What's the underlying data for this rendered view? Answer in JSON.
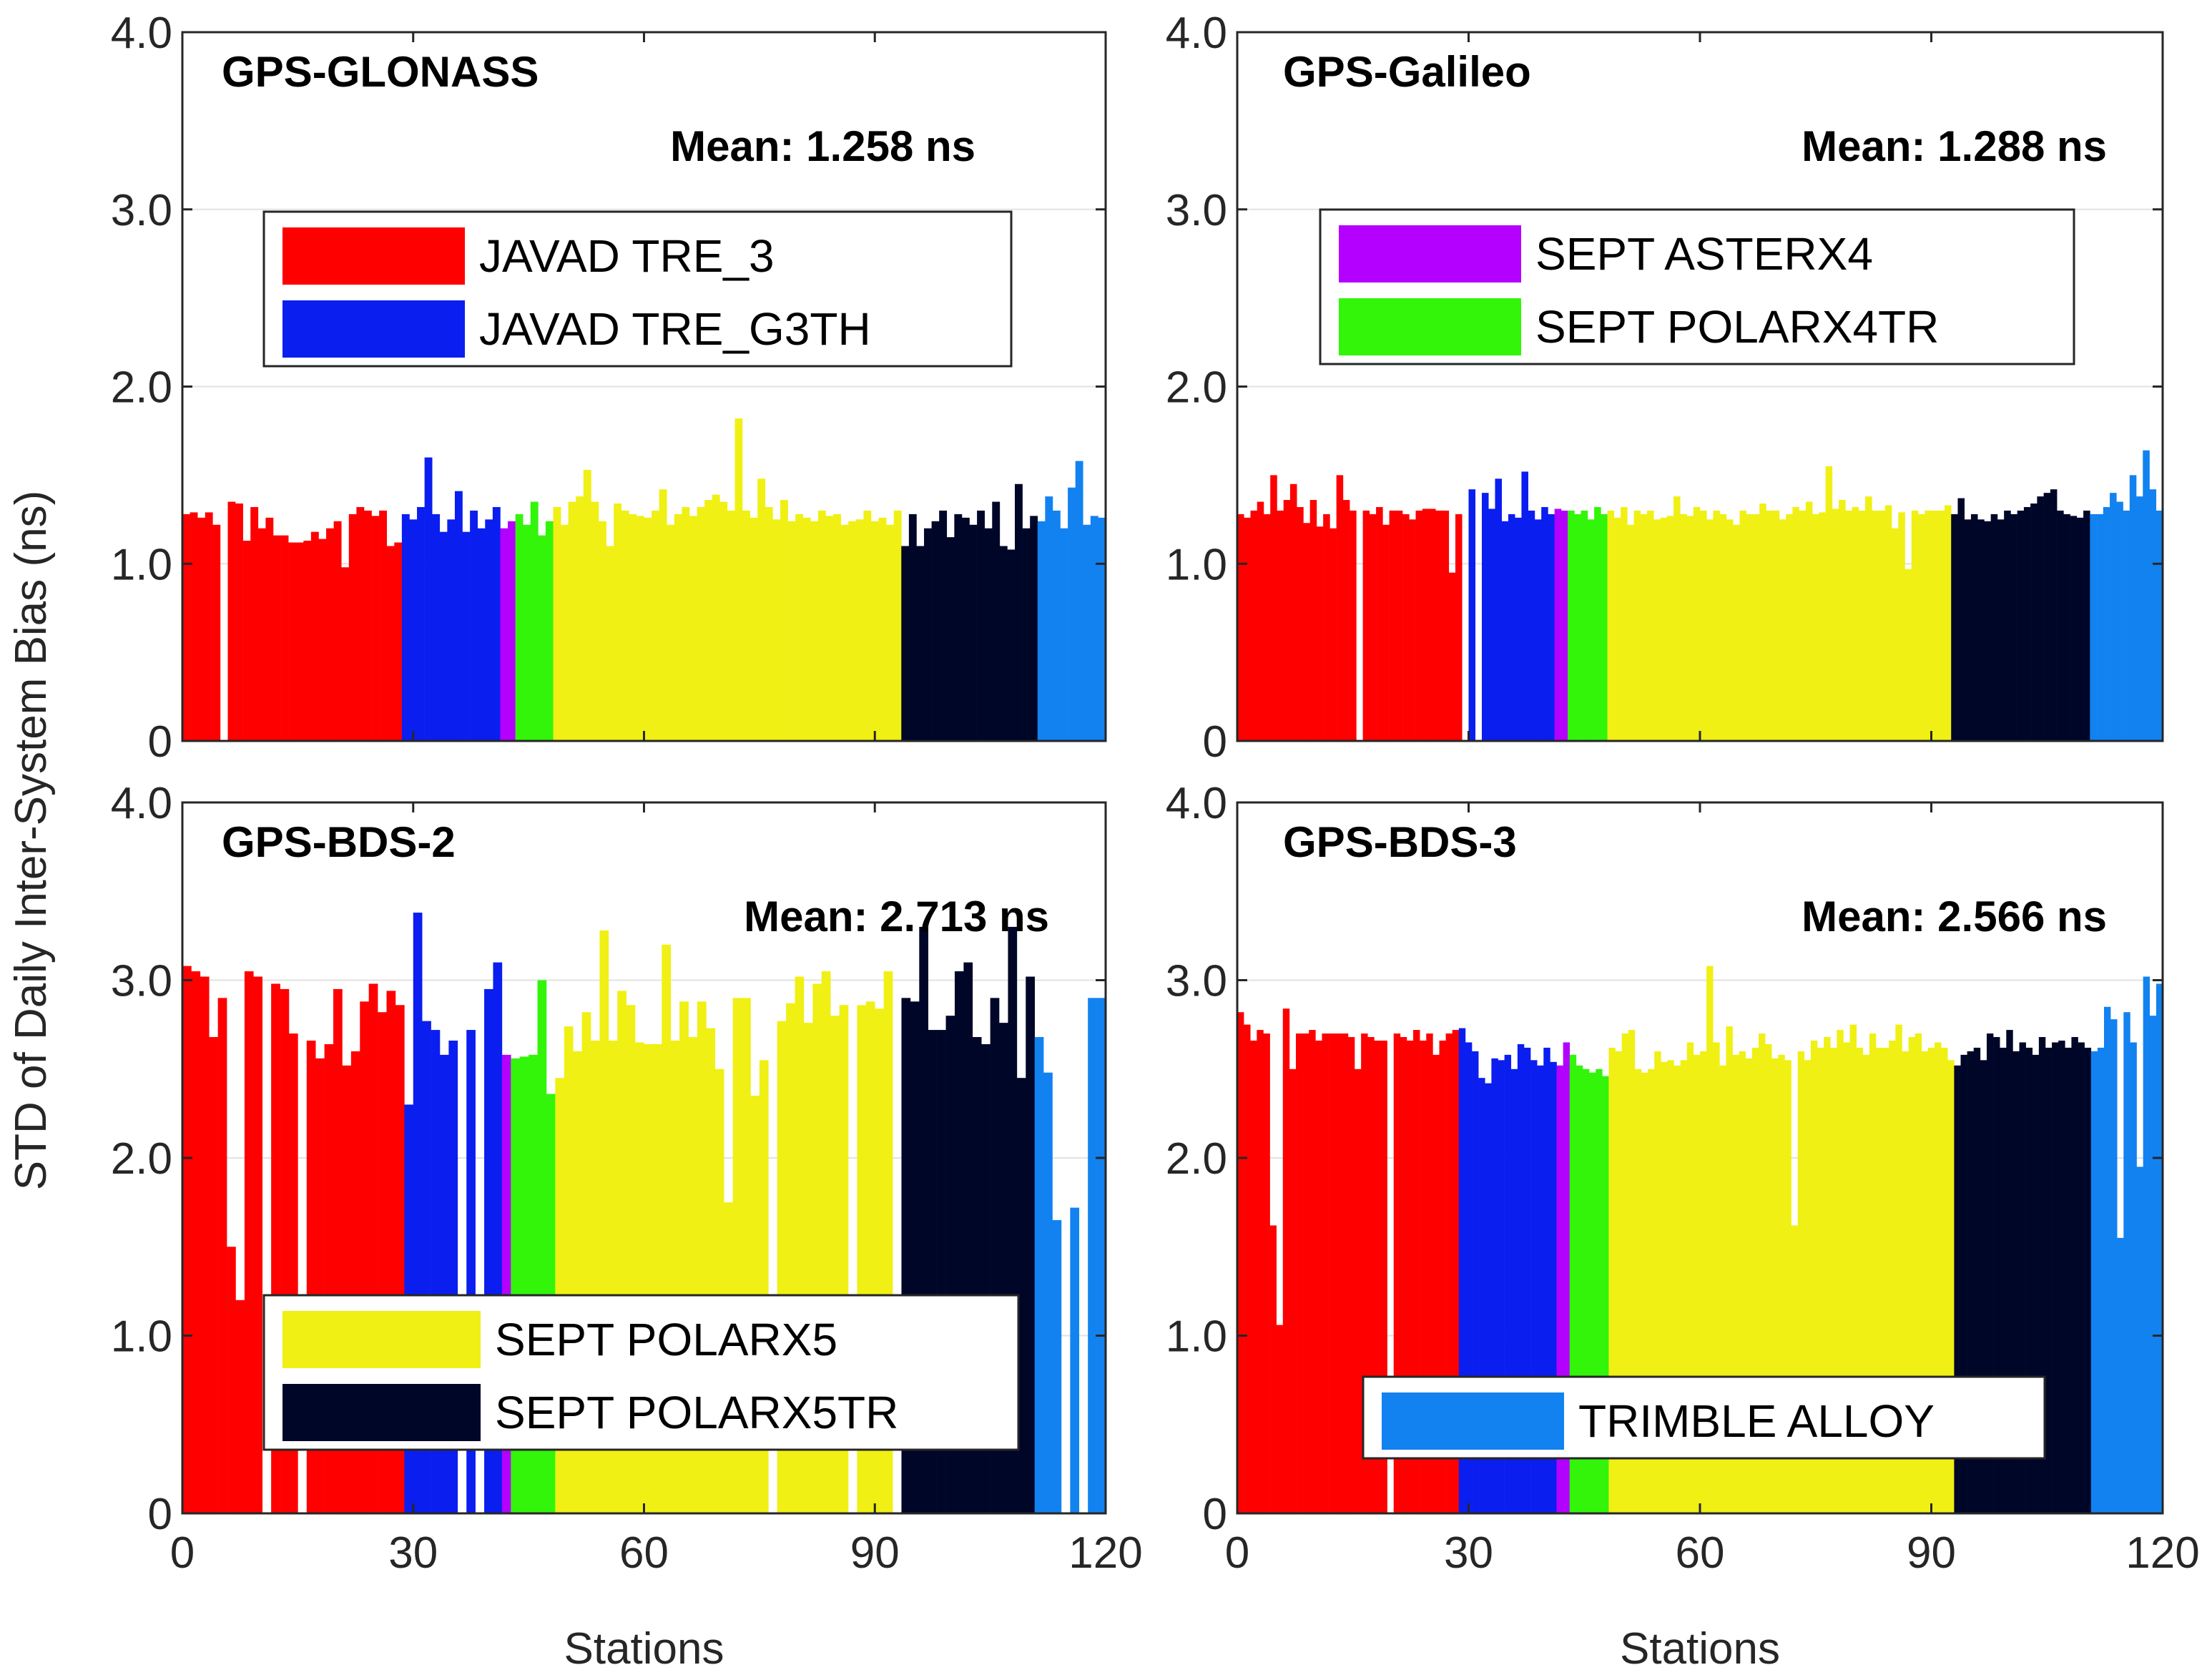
{
  "figure": {
    "ylabel": "STD of Daily Inter-System Bias (ns)",
    "xlabel": "Stations"
  },
  "chart_data": [
    {
      "type": "bar",
      "title": "GPS-GLONASS",
      "annotation": "Mean: 1.258 ns",
      "xlabel": "Stations",
      "ylabel": "STD of Daily Inter-System Bias (ns)",
      "xlim": [
        0,
        120
      ],
      "ylim": [
        0,
        4
      ],
      "xticks": [
        "0",
        "30",
        "60",
        "90",
        "120"
      ],
      "yticks": [
        "0",
        "1.0",
        "2.0",
        "3.0",
        "4.0"
      ],
      "grid": true,
      "legend": {
        "placement": "top-left",
        "entries": [
          "JAVAD TRE_3",
          "JAVAD TRE_G3TH"
        ]
      },
      "values": [
        1.28,
        1.29,
        1.26,
        1.29,
        1.22,
        0,
        1.35,
        1.34,
        1.13,
        1.32,
        1.2,
        1.26,
        1.16,
        1.16,
        1.12,
        1.12,
        1.13,
        1.18,
        1.14,
        1.2,
        1.24,
        0.98,
        1.28,
        1.32,
        1.3,
        1.27,
        1.3,
        1.1,
        1.12,
        1.28,
        1.25,
        1.32,
        1.6,
        1.28,
        1.18,
        1.25,
        1.41,
        1.18,
        1.3,
        1.2,
        1.25,
        1.32,
        1.2,
        1.24,
        1.28,
        1.22,
        1.35,
        1.16,
        1.24,
        1.32,
        1.22,
        1.35,
        1.38,
        1.53,
        1.35,
        1.24,
        1.1,
        1.34,
        1.3,
        1.28,
        1.27,
        1.26,
        1.3,
        1.42,
        1.22,
        1.28,
        1.32,
        1.27,
        1.32,
        1.36,
        1.39,
        1.35,
        1.3,
        1.82,
        1.3,
        1.26,
        1.48,
        1.32,
        1.25,
        1.36,
        1.24,
        1.28,
        1.26,
        1.24,
        1.3,
        1.27,
        1.28,
        1.22,
        1.24,
        1.25,
        1.3,
        1.24,
        1.26,
        1.22,
        1.3,
        1.1,
        1.28,
        1.1,
        1.2,
        1.24,
        1.3,
        1.15,
        1.28,
        1.26,
        1.22,
        1.3,
        1.2,
        1.35,
        1.1,
        1.08,
        1.45,
        1.2,
        1.27,
        1.24,
        1.38,
        1.3,
        1.2,
        1.43,
        1.58,
        1.22,
        1.27,
        1.26
      ]
    },
    {
      "type": "bar",
      "title": "GPS-Galileo",
      "annotation": "Mean: 1.288 ns",
      "xlabel": "Stations",
      "ylabel": "STD of Daily Inter-System Bias (ns)",
      "xlim": [
        0,
        120
      ],
      "ylim": [
        0,
        4
      ],
      "xticks": [
        "0",
        "30",
        "60",
        "90",
        "120"
      ],
      "yticks": [
        "0",
        "1.0",
        "2.0",
        "3.0",
        "4.0"
      ],
      "grid": true,
      "legend": {
        "placement": "top-left",
        "entries": [
          "SEPT ASTERX4",
          "SEPT POLARX4TR"
        ]
      },
      "values": [
        1.28,
        1.26,
        1.3,
        1.35,
        1.28,
        1.5,
        1.3,
        1.36,
        1.45,
        1.32,
        1.23,
        1.36,
        1.21,
        1.28,
        1.2,
        1.5,
        1.36,
        1.3,
        0,
        1.3,
        1.28,
        1.32,
        1.22,
        1.3,
        1.3,
        1.28,
        1.25,
        1.3,
        1.31,
        1.31,
        1.3,
        1.3,
        0.95,
        1.28,
        0,
        1.42,
        0,
        1.4,
        1.31,
        1.48,
        1.24,
        1.28,
        1.26,
        1.52,
        1.3,
        1.25,
        1.32,
        1.28,
        1.31,
        1.3,
        1.3,
        1.28,
        1.3,
        1.25,
        1.32,
        1.28,
        1.3,
        1.26,
        1.32,
        1.22,
        1.3,
        1.28,
        1.3,
        1.25,
        1.26,
        1.27,
        1.38,
        1.28,
        1.27,
        1.32,
        1.3,
        1.25,
        1.3,
        1.28,
        1.25,
        1.22,
        1.3,
        1.28,
        1.28,
        1.34,
        1.3,
        1.3,
        1.25,
        1.28,
        1.32,
        1.3,
        1.35,
        1.28,
        1.29,
        1.55,
        1.31,
        1.36,
        1.3,
        1.32,
        1.3,
        1.38,
        1.3,
        1.3,
        1.33,
        1.2,
        1.29,
        0.97,
        1.3,
        1.28,
        1.3,
        1.3,
        1.3,
        1.33,
        1.28,
        1.37,
        1.25,
        1.28,
        1.25,
        1.24,
        1.28,
        1.25,
        1.3,
        1.28,
        1.3,
        1.32,
        1.34,
        1.38,
        1.4,
        1.42,
        1.3,
        1.28,
        1.27,
        1.26,
        1.3,
        1.28,
        1.28,
        1.32,
        1.4,
        1.35,
        1.3,
        1.5,
        1.38,
        1.64,
        1.42,
        1.3
      ]
    },
    {
      "type": "bar",
      "title": "GPS-BDS-2",
      "annotation": "Mean: 2.713 ns",
      "xlabel": "Stations",
      "ylabel": "STD of Daily Inter-System Bias (ns)",
      "xlim": [
        0,
        120
      ],
      "ylim": [
        0,
        4
      ],
      "xticks": [
        "0",
        "30",
        "60",
        "90",
        "120"
      ],
      "yticks": [
        "0",
        "1.0",
        "2.0",
        "3.0",
        "4.0"
      ],
      "grid": true,
      "legend": {
        "placement": "bottom-left",
        "entries": [
          "SEPT POLARX5",
          "SEPT POLARX5TR"
        ]
      },
      "values": [
        3.08,
        3.05,
        3.02,
        2.68,
        2.9,
        1.5,
        1.2,
        3.05,
        3.02,
        0,
        2.98,
        2.95,
        2.7,
        0,
        2.66,
        2.56,
        2.64,
        2.95,
        2.52,
        2.6,
        2.88,
        2.98,
        2.82,
        2.94,
        2.86,
        2.3,
        3.38,
        2.77,
        2.72,
        2.58,
        2.66,
        0,
        2.72,
        0,
        2.95,
        3.1,
        2.58,
        2.56,
        2.57,
        2.58,
        3.0,
        2.36,
        2.45,
        2.74,
        2.6,
        2.82,
        2.66,
        3.28,
        2.66,
        2.94,
        2.86,
        2.65,
        2.64,
        2.64,
        3.2,
        2.66,
        2.88,
        2.68,
        2.88,
        2.73,
        2.5,
        1.75,
        2.9,
        2.9,
        2.35,
        2.55,
        0,
        2.77,
        2.87,
        3.02,
        2.76,
        2.98,
        3.05,
        2.8,
        2.86,
        0,
        2.86,
        2.88,
        2.84,
        3.05,
        0,
        2.9,
        2.88,
        3.3,
        2.72,
        2.72,
        2.8,
        3.05,
        3.1,
        2.68,
        2.64,
        2.9,
        2.76,
        3.3,
        2.45,
        3.02,
        2.68,
        2.48,
        1.65,
        0,
        1.72,
        0,
        2.9,
        2.9
      ]
    },
    {
      "type": "bar",
      "title": "GPS-BDS-3",
      "annotation": "Mean: 2.566 ns",
      "xlabel": "Stations",
      "ylabel": "STD of Daily Inter-System Bias (ns)",
      "xlim": [
        0,
        120
      ],
      "ylim": [
        0,
        4
      ],
      "xticks": [
        "0",
        "30",
        "60",
        "90",
        "120"
      ],
      "yticks": [
        "0",
        "1.0",
        "2.0",
        "3.0",
        "4.0"
      ],
      "grid": true,
      "legend": {
        "placement": "bottom-right",
        "entries": [
          "TRIMBLE ALLOY"
        ]
      },
      "values": [
        2.82,
        2.75,
        2.66,
        2.72,
        2.7,
        1.62,
        1.06,
        2.84,
        2.5,
        2.7,
        2.7,
        2.72,
        2.66,
        2.7,
        2.7,
        2.7,
        2.7,
        2.68,
        2.5,
        2.7,
        2.68,
        2.66,
        2.66,
        0,
        2.7,
        2.68,
        2.66,
        2.72,
        2.66,
        2.7,
        2.58,
        2.66,
        2.7,
        2.72,
        2.73,
        2.65,
        2.6,
        2.45,
        2.42,
        2.56,
        2.55,
        2.58,
        2.5,
        2.64,
        2.62,
        2.55,
        2.52,
        2.62,
        2.54,
        2.52,
        2.65,
        2.58,
        2.52,
        2.5,
        2.48,
        2.5,
        2.46,
        2.62,
        2.6,
        2.7,
        2.72,
        2.5,
        2.48,
        2.5,
        2.6,
        2.54,
        2.55,
        2.52,
        2.55,
        2.65,
        2.58,
        2.6,
        3.08,
        2.65,
        2.52,
        2.74,
        2.58,
        2.6,
        2.56,
        2.62,
        2.7,
        2.64,
        2.56,
        2.58,
        2.55,
        1.62,
        2.6,
        2.55,
        2.66,
        2.62,
        2.68,
        2.62,
        2.72,
        2.65,
        2.75,
        2.62,
        2.58,
        2.7,
        2.62,
        2.62,
        2.66,
        2.75,
        2.6,
        2.68,
        2.7,
        2.6,
        2.62,
        2.65,
        2.62,
        2.55,
        2.52,
        2.58,
        2.6,
        2.62,
        2.55,
        2.7,
        2.68,
        2.62,
        2.72,
        2.6,
        2.65,
        2.62,
        2.58,
        2.68,
        2.62,
        2.65,
        2.66,
        2.62,
        2.68,
        2.65,
        2.62,
        2.6,
        2.62,
        2.85,
        2.78,
        1.55,
        2.82,
        2.65,
        1.95,
        3.02,
        2.8,
        2.98
      ]
    }
  ],
  "receivers": [
    {
      "name": "JAVAD TRE_3",
      "color": "#ff0000"
    },
    {
      "name": "JAVAD TRE_G3TH",
      "color": "#0a1ef0"
    },
    {
      "name": "SEPT ASTERX4",
      "color": "#b400ff"
    },
    {
      "name": "SEPT POLARX4TR",
      "color": "#32f50a"
    },
    {
      "name": "SEPT POLARX5",
      "color": "#f0f014"
    },
    {
      "name": "SEPT POLARX5TR",
      "color": "#000628"
    },
    {
      "name": "TRIMBLE ALLOY",
      "color": "#1282f0"
    }
  ],
  "receiver_station_ranges": [
    {
      "name": "JAVAD TRE_3",
      "from": 0,
      "to": 29
    },
    {
      "name": "JAVAD TRE_G3TH",
      "from": 29,
      "to": 41
    },
    {
      "name": "SEPT ASTERX4",
      "from": 41,
      "to": 43
    },
    {
      "name": "SEPT POLARX4TR",
      "from": 43,
      "to": 48
    },
    {
      "name": "SEPT POLARX5",
      "from": 48,
      "to": 93
    },
    {
      "name": "SEPT POLARX5TR",
      "from": 93,
      "to": 111
    },
    {
      "name": "TRIMBLE ALLOY",
      "from": 111,
      "to": 120
    }
  ]
}
